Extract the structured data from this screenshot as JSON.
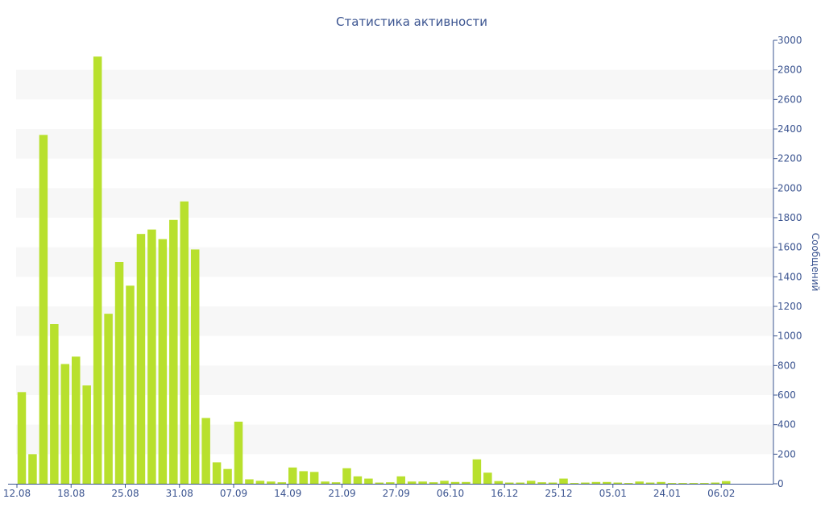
{
  "colors": {
    "bar": "#b8e02d",
    "text": "#3b5490",
    "band": "#f7f7f7",
    "axis": "#3b5490"
  },
  "chart_data": {
    "type": "bar",
    "title": "Статистика активности",
    "ylabel": "Сообщений",
    "y_axis_position": "right",
    "ylim": [
      0,
      3000
    ],
    "y_ticks": [
      0,
      200,
      400,
      600,
      800,
      1000,
      1200,
      1400,
      1600,
      1800,
      2000,
      2200,
      2400,
      2600,
      2800,
      3000
    ],
    "alternating_bands": true,
    "x_tick_labels": [
      {
        "index": 0,
        "label": "12.08"
      },
      {
        "index": 5,
        "label": "18.08"
      },
      {
        "index": 10,
        "label": "25.08"
      },
      {
        "index": 15,
        "label": "31.08"
      },
      {
        "index": 20,
        "label": "07.09"
      },
      {
        "index": 25,
        "label": "14.09"
      },
      {
        "index": 30,
        "label": "21.09"
      },
      {
        "index": 35,
        "label": "27.09"
      },
      {
        "index": 40,
        "label": "06.10"
      },
      {
        "index": 45,
        "label": "16.12"
      },
      {
        "index": 50,
        "label": "25.12"
      },
      {
        "index": 55,
        "label": "05.01"
      },
      {
        "index": 60,
        "label": "24.01"
      },
      {
        "index": 65,
        "label": "06.02"
      }
    ],
    "values": [
      620,
      200,
      2360,
      1080,
      810,
      860,
      665,
      2890,
      1150,
      1500,
      1340,
      1690,
      1720,
      1655,
      1785,
      1910,
      1585,
      445,
      145,
      100,
      420,
      30,
      20,
      15,
      10,
      110,
      85,
      80,
      15,
      10,
      105,
      50,
      35,
      8,
      10,
      50,
      15,
      15,
      10,
      20,
      12,
      12,
      165,
      75,
      18,
      8,
      8,
      20,
      10,
      8,
      35,
      5,
      8,
      12,
      12,
      8,
      5,
      15,
      8,
      12,
      5,
      5,
      5,
      5,
      8,
      18
    ]
  }
}
